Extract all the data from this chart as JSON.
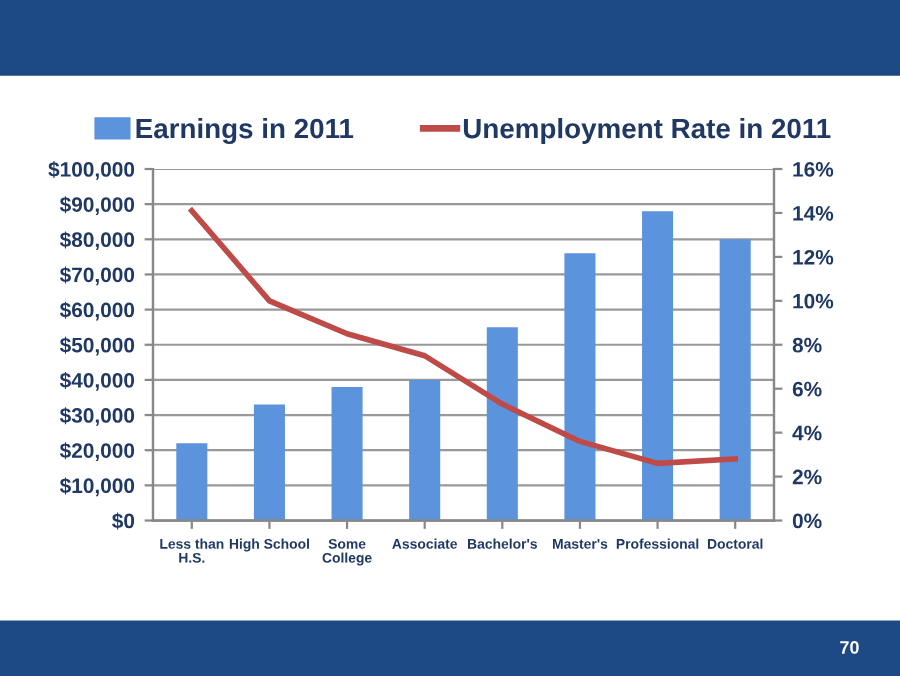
{
  "chart_data": {
    "type": "bar",
    "categories": [
      "Less than\nH.S.",
      "High School",
      "Some\nCollege",
      "Associate",
      "Bachelor's",
      "Master's",
      "Professional",
      "Doctoral"
    ],
    "series": [
      {
        "name": "Earnings in 2011",
        "color": "#5b93dc",
        "values": [
          22000,
          33000,
          38000,
          40000,
          55000,
          76000,
          88000,
          80000
        ]
      },
      {
        "name": "Unemployment Rate in 2011",
        "type": "line",
        "axis": "y2",
        "color": "#be4b48",
        "values": [
          14.1,
          10.0,
          8.5,
          7.5,
          5.3,
          3.6,
          2.6,
          2.8
        ]
      }
    ],
    "ylim": [
      0,
      100000
    ],
    "yticks": [
      {
        "value": 0,
        "label": "$0"
      },
      {
        "value": 10000,
        "label": "$10,000"
      },
      {
        "value": 20000,
        "label": "$20,000"
      },
      {
        "value": 30000,
        "label": "$30,000"
      },
      {
        "value": 40000,
        "label": "$40,000"
      },
      {
        "value": 50000,
        "label": "$50,000"
      },
      {
        "value": 60000,
        "label": "$60,000"
      },
      {
        "value": 70000,
        "label": "$70,000"
      },
      {
        "value": 80000,
        "label": "$80,000"
      },
      {
        "value": 90000,
        "label": "$90,000"
      },
      {
        "value": 100000,
        "label": "$100,000"
      }
    ],
    "y2lim": [
      0,
      16
    ],
    "y2ticks": [
      {
        "value": 0,
        "label": "0%"
      },
      {
        "value": 2,
        "label": "2%"
      },
      {
        "value": 4,
        "label": "4%"
      },
      {
        "value": 6,
        "label": "6%"
      },
      {
        "value": 8,
        "label": "8%"
      },
      {
        "value": 10,
        "label": "10%"
      },
      {
        "value": 12,
        "label": "12%"
      },
      {
        "value": 14,
        "label": "14%"
      },
      {
        "value": 16,
        "label": "16%"
      }
    ],
    "grid": "y",
    "legend": "top",
    "marker": "none",
    "line_style": "solid",
    "annotations": [
      "70"
    ]
  }
}
